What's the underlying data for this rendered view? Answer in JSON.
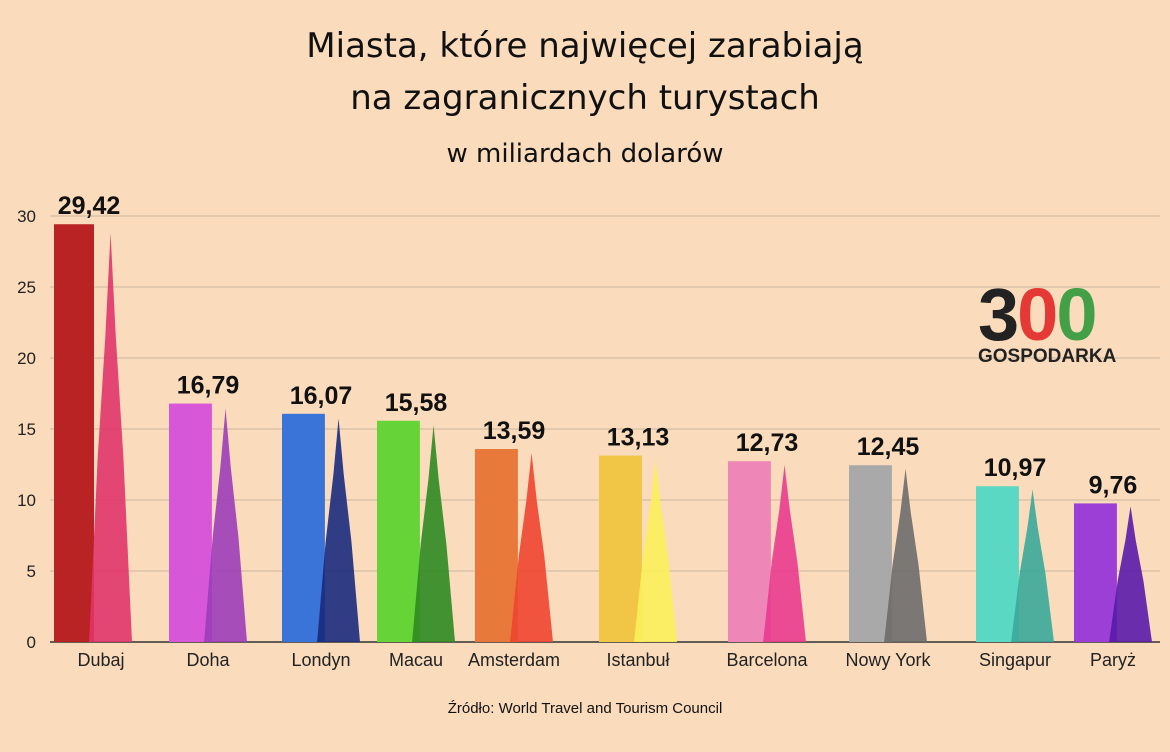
{
  "header": {
    "title_line1": "Miasta, które najwięcej zarabiają",
    "title_line2": "na zagranicznych turystach",
    "subtitle": "w miliardach dolarów"
  },
  "footer": {
    "source": "Źródło: World Travel and Tourism Council"
  },
  "logo": {
    "number_3": "3",
    "number_0a": "0",
    "number_0b": "0",
    "word": "GOSPODARKA",
    "colors": [
      "#222222",
      "#e53935",
      "#43a047"
    ]
  },
  "chart_data": {
    "type": "bar",
    "title": "Miasta, które najwięcej zarabiają na zagranicznych turystach",
    "subtitle": "w miliardach dolarów",
    "categories": [
      "Dubaj",
      "Doha",
      "Londyn",
      "Macau",
      "Amsterdam",
      "Istanbuł",
      "Barcelona",
      "Nowy York",
      "Singapur",
      "Paryż"
    ],
    "values": [
      29.42,
      16.79,
      16.07,
      15.58,
      13.59,
      13.13,
      12.73,
      12.45,
      10.97,
      9.76
    ],
    "value_labels": [
      "29,42",
      "16,79",
      "16,07",
      "15,58",
      "13,59",
      "13,13",
      "12,73",
      "12,45",
      "10,97",
      "9,76"
    ],
    "colors": [
      "#b92323",
      "#d856d8",
      "#3a74d8",
      "#66d336",
      "#e8793a",
      "#f1c545",
      "#ee86b7",
      "#a9a9a9",
      "#5ad8c4",
      "#9b3fd6"
    ],
    "landmark_colors": [
      "#e0356a",
      "#9c3db8",
      "#1a2a7c",
      "#2f8a22",
      "#ee4530",
      "#fbf05a",
      "#e93b8e",
      "#6c6c6c",
      "#3aa89a",
      "#5a1aa8"
    ],
    "ylim": [
      0,
      30
    ],
    "yticks": [
      "0",
      "5",
      "10",
      "15",
      "20",
      "25",
      "30"
    ],
    "grid": true,
    "xlabel": "",
    "ylabel": ""
  }
}
